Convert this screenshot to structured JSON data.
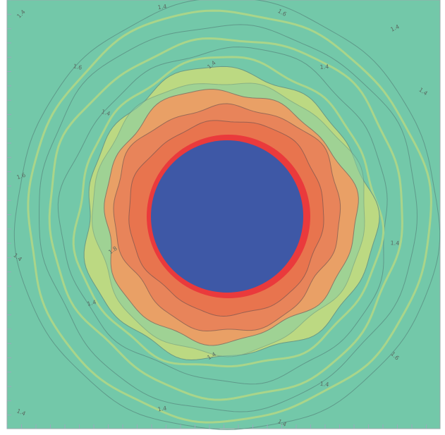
{
  "contour_labels": [
    "1.4",
    "1.4",
    "1.6",
    "1.4",
    "1.6",
    "1.4",
    "1.4",
    "1.4",
    "1.6",
    "1.4",
    "1.8",
    "1.4",
    "1.4",
    "1.4",
    "1.4",
    "1.4",
    "1.4",
    "1.6",
    "1.4",
    "1.4"
  ]
}
